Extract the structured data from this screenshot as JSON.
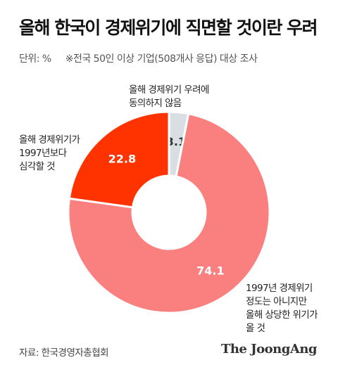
{
  "header": {
    "title": "올해 한국이 경제위기에 직면할 것이란 우려",
    "unit": "단위: %",
    "note": "※전국 50인 이상 기업(508개사 응답) 대상 조사"
  },
  "chart_data": {
    "type": "pie",
    "title": "올해 한국이 경제위기에 직면할 것이란 우려",
    "unit": "%",
    "donut": true,
    "slices": [
      {
        "label": "올해 경제위기 우려에 동의하지 않음",
        "label_lines": [
          "올해 경제위기 우려에",
          "동의하지 않음"
        ],
        "value": 3.1,
        "value_label": "3.1",
        "color": "#d9dee3",
        "value_text_color": "#333333"
      },
      {
        "label": "1997년 경제위기 정도는 아니지만 올해 상당한 위기가 올 것",
        "label_lines": [
          "1997년 경제위기",
          "정도는 아니지만",
          "올해 상당한 위기가",
          "올 것"
        ],
        "value": 74.1,
        "value_label": "74.1",
        "color": "#fa8080",
        "value_text_color": "#ffffff"
      },
      {
        "label": "올해 경제위기가 1997년보다 심각할 것",
        "label_lines": [
          "올해 경제위기가",
          "1997년보다",
          "심각할 것"
        ],
        "value": 22.8,
        "value_label": "22.8",
        "color": "#ff3300",
        "value_text_color": "#ffffff"
      }
    ]
  },
  "footer": {
    "source": "자료: 한국경영자총협회",
    "logo": "The JoongAng"
  }
}
